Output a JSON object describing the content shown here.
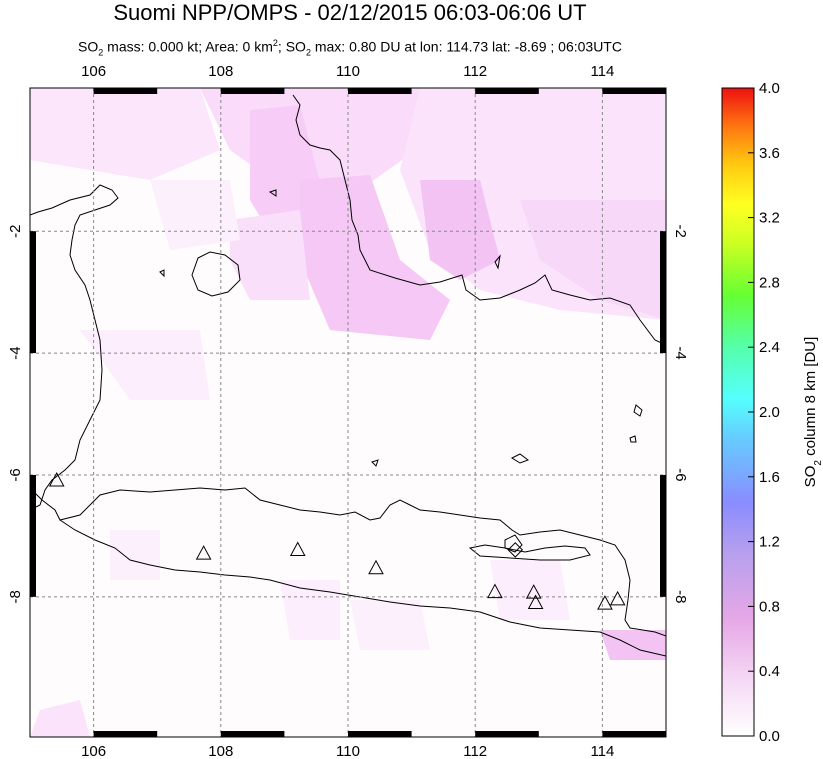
{
  "header": {
    "title": "Suomi NPP/OMPS - 02/12/2015 06:03-06:06 UT",
    "subtitle_parts": {
      "a": "SO",
      "a_sub": "2",
      "b": " mass: 0.000 kt; Area: 0 km",
      "b_sup": "2",
      "c": "; SO",
      "c_sub": "2",
      "d": " max: 0.80 DU at lon: 114.73 lat: -8.69 ; 06:03UTC"
    }
  },
  "map": {
    "lon_range": [
      105,
      115
    ],
    "lat_range": [
      -10.3,
      0.35
    ],
    "lon_ticks": [
      "106",
      "108",
      "110",
      "112",
      "114"
    ],
    "lat_ticks": [
      "-2",
      "-4",
      "-6",
      "-8"
    ],
    "volcano_markers": [
      {
        "lon": 105.42,
        "lat": -6.1
      },
      {
        "lon": 107.73,
        "lat": -7.3
      },
      {
        "lon": 109.21,
        "lat": -7.24
      },
      {
        "lon": 110.44,
        "lat": -7.54
      },
      {
        "lon": 112.31,
        "lat": -7.93
      },
      {
        "lon": 112.92,
        "lat": -7.94
      },
      {
        "lon": 112.95,
        "lat": -8.11
      },
      {
        "lon": 114.04,
        "lat": -8.12
      },
      {
        "lon": 114.24,
        "lat": -8.05
      },
      {
        "lon": 112.63,
        "lat": -7.23
      }
    ]
  },
  "colorbar": {
    "title": "SO2 column 8 km [DU]",
    "title_parts": {
      "a": "SO",
      "sub": "2",
      "b": " column 8 km [DU]"
    },
    "ticks": [
      "4.0",
      "3.6",
      "3.2",
      "2.8",
      "2.4",
      "2.0",
      "1.6",
      "1.2",
      "0.8",
      "0.4",
      "0.0"
    ],
    "colors": [
      "#ffffff",
      "#f3c8f3",
      "#e29be2",
      "#c8a0f0",
      "#8888ff",
      "#66ccff",
      "#55ffff",
      "#55ff99",
      "#88ff33",
      "#ccff22",
      "#ffff22",
      "#ffcc11",
      "#ff8811",
      "#ff4411",
      "#ee1111"
    ]
  }
}
